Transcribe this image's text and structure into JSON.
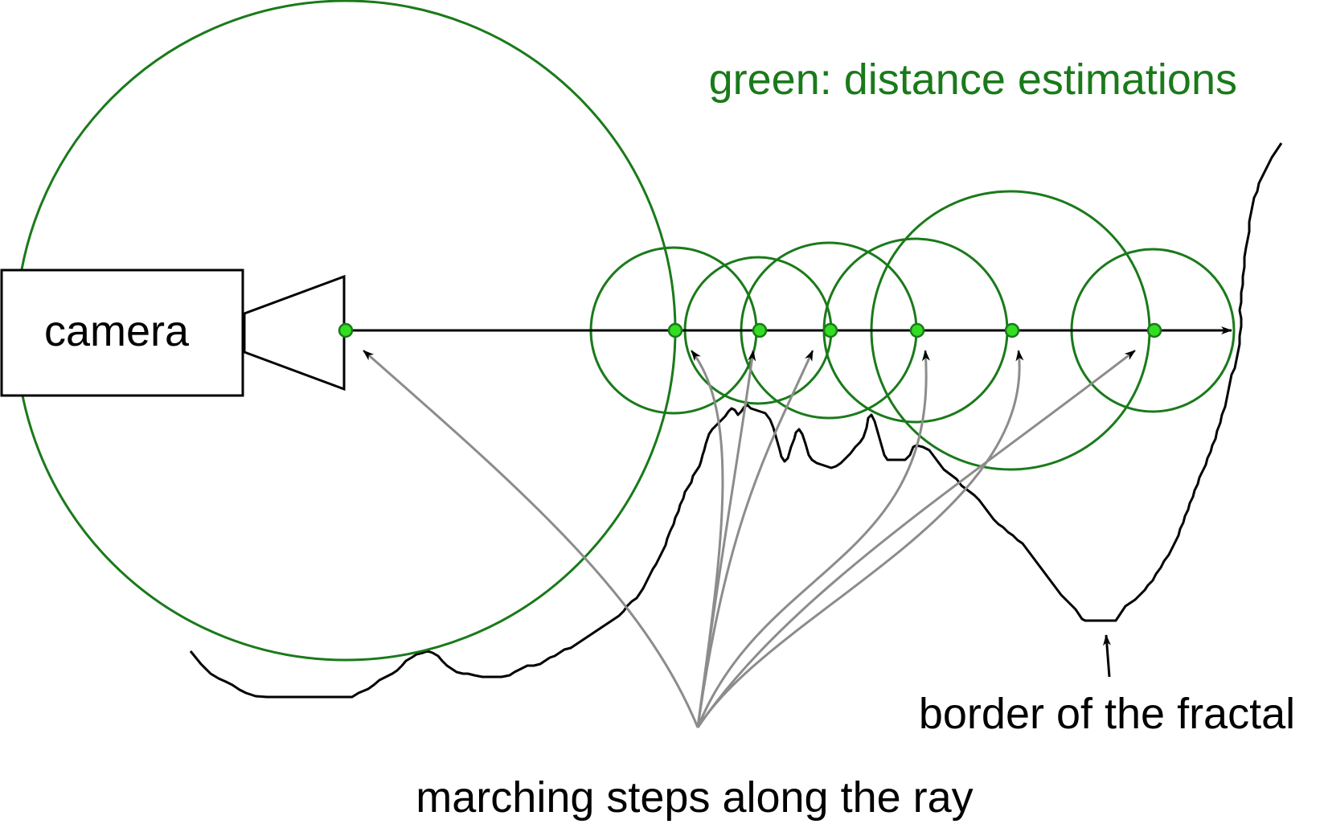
{
  "labels": {
    "legend": "green: distance estimations",
    "camera": "camera",
    "border": "border of the fractal",
    "steps": "marching steps along the ray"
  },
  "colors": {
    "circle": "#1a7a1a",
    "legend_text": "#1a7a1a",
    "point_fill": "#33dd22",
    "point_stroke": "#1a7a1a",
    "pointer_arrows": "#8c8c8c",
    "ray": "#000000",
    "fractal_border": "#000000",
    "text": "#000000"
  },
  "icons": {
    "camera": "camera-icon"
  }
}
